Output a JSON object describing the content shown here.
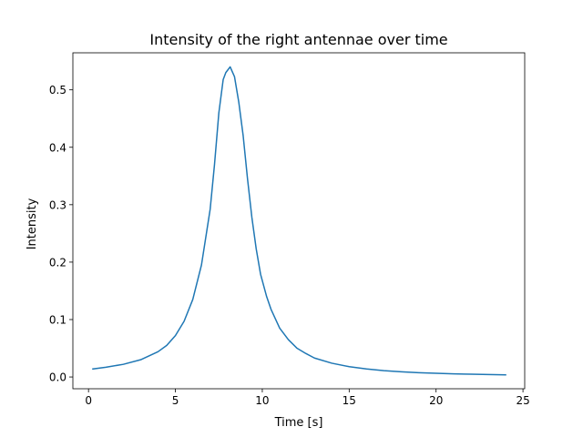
{
  "chart_data": {
    "type": "line",
    "title": "Intensity of the right antennae over time",
    "xlabel": "Time [s]",
    "ylabel": "Intensity",
    "xlim": [
      -0.9,
      25.1
    ],
    "ylim": [
      -0.0205,
      0.5645
    ],
    "xticks": [
      0,
      5,
      10,
      15,
      20,
      25
    ],
    "yticks": [
      0.0,
      0.1,
      0.2,
      0.3,
      0.4,
      0.5
    ],
    "xtick_labels": [
      "0",
      "5",
      "10",
      "15",
      "20",
      "25"
    ],
    "ytick_labels": [
      "0.0",
      "0.1",
      "0.2",
      "0.3",
      "0.4",
      "0.5"
    ],
    "grid": false,
    "series": [
      {
        "color": "#1f77b4",
        "x": [
          0.25,
          1.0,
          2.0,
          3.0,
          4.0,
          4.5,
          5.0,
          5.5,
          6.0,
          6.5,
          7.0,
          7.25,
          7.5,
          7.75,
          7.9,
          8.15,
          8.4,
          8.65,
          8.9,
          9.15,
          9.4,
          9.65,
          9.9,
          10.25,
          10.5,
          11.0,
          11.5,
          12.0,
          12.5,
          13.0,
          14.0,
          15.0,
          16.0,
          17.0,
          18.0,
          19.0,
          20.0,
          21.0,
          22.0,
          23.0,
          24.0
        ],
        "y": [
          0.014,
          0.017,
          0.022,
          0.03,
          0.044,
          0.055,
          0.072,
          0.097,
          0.135,
          0.195,
          0.292,
          0.37,
          0.46,
          0.518,
          0.53,
          0.54,
          0.523,
          0.478,
          0.42,
          0.345,
          0.278,
          0.223,
          0.179,
          0.14,
          0.118,
          0.085,
          0.065,
          0.05,
          0.041,
          0.033,
          0.024,
          0.018,
          0.014,
          0.011,
          0.009,
          0.0075,
          0.0065,
          0.0055,
          0.0048,
          0.0042,
          0.0037
        ]
      }
    ]
  }
}
